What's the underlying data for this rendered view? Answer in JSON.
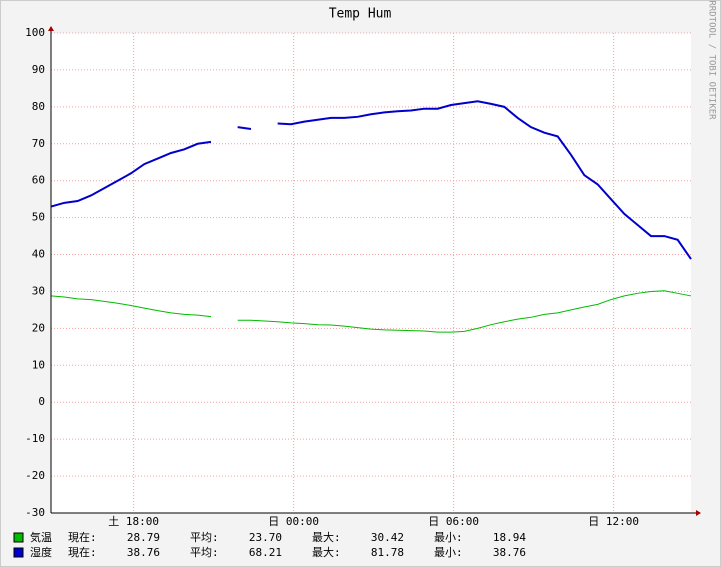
{
  "chart_data": {
    "type": "line",
    "title": "Temp Hum",
    "watermark": "RRDTOOL / TOBI OETIKER",
    "x": [
      14.9,
      15.4,
      15.9,
      16.4,
      16.9,
      17.4,
      17.9,
      18.4,
      18.9,
      19.4,
      19.9,
      20.4,
      20.9,
      21.4,
      21.9,
      22.4,
      22.9,
      23.4,
      23.9,
      24.4,
      24.9,
      25.4,
      25.9,
      26.4,
      26.9,
      27.4,
      27.9,
      28.4,
      28.9,
      29.4,
      29.9,
      30.4,
      30.9,
      31.4,
      31.9,
      32.4,
      32.9,
      33.4,
      33.9,
      34.4,
      34.9,
      35.4,
      35.9,
      36.4,
      36.9,
      37.4,
      37.9,
      38.4,
      38.9
    ],
    "xlim": [
      14.9,
      38.9
    ],
    "xticks": [
      {
        "value": 18,
        "label": "土 18:00"
      },
      {
        "value": 24,
        "label": "日 00:00"
      },
      {
        "value": 30,
        "label": "日 06:00"
      },
      {
        "value": 36,
        "label": "日 12:00"
      }
    ],
    "ylim": [
      -30,
      100
    ],
    "yticks": [
      -30,
      -20,
      -10,
      0,
      10,
      20,
      30,
      40,
      50,
      60,
      70,
      80,
      90,
      100
    ],
    "grid": true,
    "stat_labels": [
      "現在:",
      "平均:",
      "最大:",
      "最小:"
    ],
    "series": [
      {
        "name": "気温",
        "color": "#00bb00",
        "stats": [
          "28.79",
          "23.70",
          "30.42",
          "18.94"
        ],
        "values": [
          28.8,
          28.5,
          28,
          27.8,
          27.3,
          26.8,
          26.2,
          25.5,
          24.8,
          24.2,
          23.8,
          23.6,
          23.2,
          null,
          22.2,
          22.2,
          22,
          21.8,
          21.5,
          21.3,
          21,
          20.9,
          20.6,
          20.2,
          19.8,
          19.6,
          19.5,
          19.4,
          19.3,
          19,
          19,
          19.2,
          20,
          21,
          21.8,
          22.5,
          23,
          23.8,
          24.2,
          25,
          25.8,
          26.5,
          27.8,
          28.8,
          29.5,
          30,
          30.2,
          29.5,
          28.79
        ]
      },
      {
        "name": "湿度",
        "color": "#0000cc",
        "stats": [
          "38.76",
          "68.21",
          "81.78",
          "38.76"
        ],
        "values": [
          53,
          54,
          54.5,
          56,
          58,
          60,
          62,
          64.5,
          66,
          67.5,
          68.5,
          70,
          70.5,
          null,
          74.5,
          74,
          null,
          75.5,
          75.3,
          76,
          76.5,
          77,
          77,
          77.3,
          78,
          78.5,
          78.8,
          79,
          79.5,
          79.5,
          80.5,
          81,
          81.5,
          80.8,
          80,
          77,
          74.5,
          73,
          72,
          67,
          61.5,
          59,
          55,
          51,
          48,
          45,
          45,
          44,
          38.76
        ]
      }
    ]
  }
}
